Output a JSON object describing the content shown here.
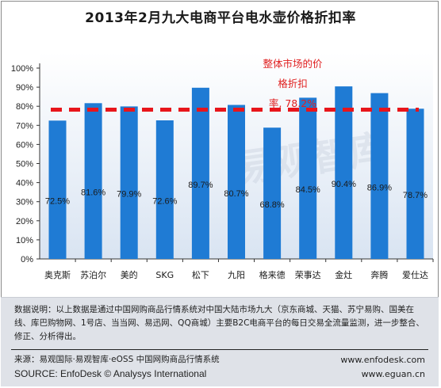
{
  "chart_data": {
    "type": "bar",
    "title": "2013年2月九大电商平台电水壶价格折扣率",
    "categories": [
      "奥克斯",
      "苏泊尔",
      "美的",
      "SKG",
      "松下",
      "九阳",
      "格来德",
      "荣事达",
      "金灶",
      "奔腾",
      "爱仕达"
    ],
    "values": [
      72.5,
      81.6,
      79.9,
      72.6,
      89.7,
      80.7,
      68.8,
      84.5,
      90.4,
      86.9,
      78.7
    ],
    "value_labels": [
      "72.5%",
      "81.6%",
      "79.9%",
      "72.6%",
      "89.7%",
      "80.7%",
      "68.8%",
      "84.5%",
      "90.4%",
      "86.9%",
      "78.7%"
    ],
    "ylim": [
      0,
      100
    ],
    "y_ticks": [
      "0%",
      "10%",
      "20%",
      "30%",
      "40%",
      "50%",
      "60%",
      "70%",
      "80%",
      "90%",
      "100%"
    ],
    "reference_line": {
      "value": 78.2
    },
    "annotation_lines": [
      "整体市场的价",
      "格折扣",
      "率, 78.2%"
    ],
    "grid": false,
    "bar_color": "#1f7bd4",
    "reference_color": "#e8151b",
    "annotation_color": "#e02020",
    "watermark": "易观智库"
  },
  "note": "数据说明：以上数据是通过中国网购商品行情系统对中国大陆市场九大（京东商城、天猫、苏宁易购、国美在线、库巴购物网、1号店、当当网、易迅网、QQ商城）主要B2C电商平台的每日交易全流量监测，进一步整合、修正、分析得出。",
  "footer": {
    "source_cn": "来源：易观国际·易观智库·eOSS 中国网购商品行情系统",
    "source_en": "SOURCE: EnfoDesk © Analysys International",
    "url_1": "www.enfodesk.com",
    "url_2": "www.eguan.cn"
  }
}
